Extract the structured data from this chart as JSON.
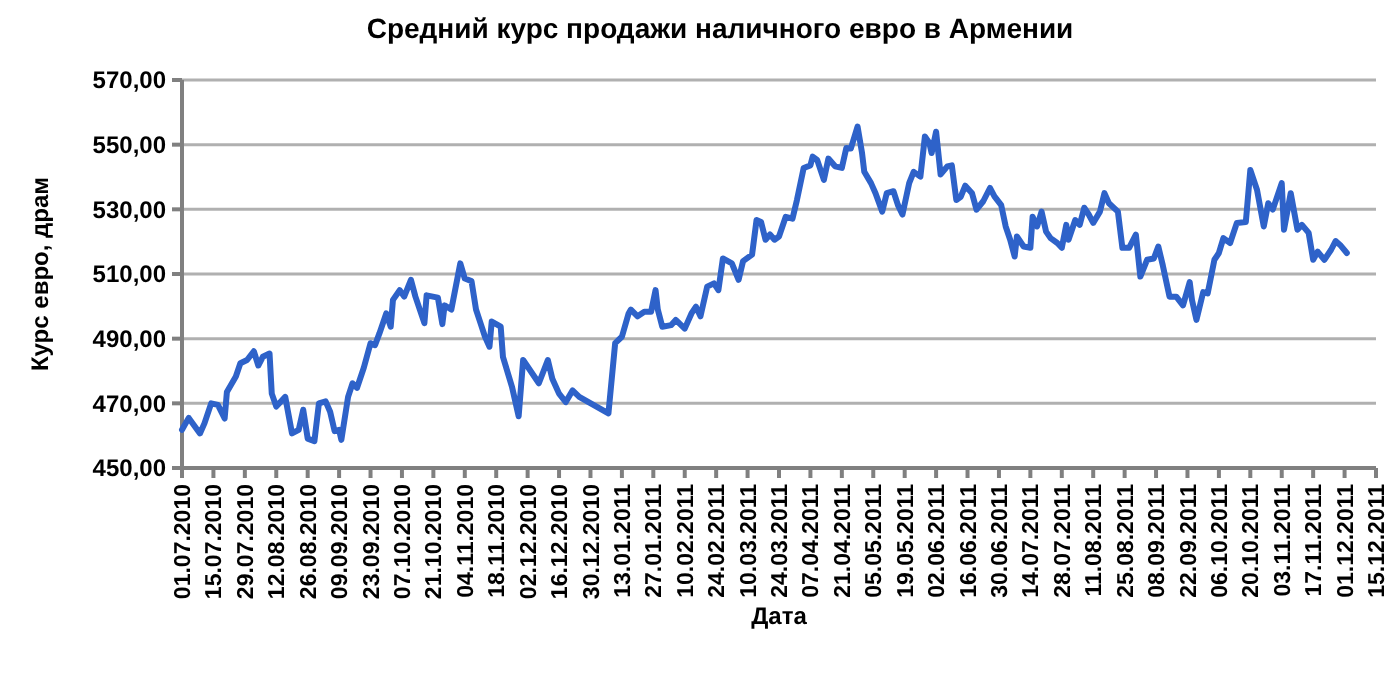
{
  "chart_data": {
    "type": "line",
    "title": "Средний курс продажи  наличного евро в Армении",
    "xlabel": "Дата",
    "ylabel": "Курс евро, драм",
    "xlim": [
      "2010-07-01",
      "2011-12-15"
    ],
    "xticks": [
      {
        "value": "2010-07-01",
        "label": "01.07.2010"
      },
      {
        "value": "2010-07-15",
        "label": "15.07.2010"
      },
      {
        "value": "2010-07-29",
        "label": "29.07.2010"
      },
      {
        "value": "2010-08-12",
        "label": "12.08.2010"
      },
      {
        "value": "2010-08-26",
        "label": "26.08.2010"
      },
      {
        "value": "2010-09-09",
        "label": "09.09.2010"
      },
      {
        "value": "2010-09-23",
        "label": "23.09.2010"
      },
      {
        "value": "2010-10-07",
        "label": "07.10.2010"
      },
      {
        "value": "2010-10-21",
        "label": "21.10.2010"
      },
      {
        "value": "2010-11-04",
        "label": "04.11.2010"
      },
      {
        "value": "2010-11-18",
        "label": "18.11.2010"
      },
      {
        "value": "2010-12-02",
        "label": "02.12.2010"
      },
      {
        "value": "2010-12-16",
        "label": "16.12.2010"
      },
      {
        "value": "2010-12-30",
        "label": "30.12.2010"
      },
      {
        "value": "2011-01-13",
        "label": "13.01.2011"
      },
      {
        "value": "2011-01-27",
        "label": "27.01.2011"
      },
      {
        "value": "2011-02-10",
        "label": "10.02.2011"
      },
      {
        "value": "2011-02-24",
        "label": "24.02.2011"
      },
      {
        "value": "2011-03-10",
        "label": "10.03.2011"
      },
      {
        "value": "2011-03-24",
        "label": "24.03.2011"
      },
      {
        "value": "2011-04-07",
        "label": "07.04.2011"
      },
      {
        "value": "2011-04-21",
        "label": "21.04.2011"
      },
      {
        "value": "2011-05-05",
        "label": "05.05.2011"
      },
      {
        "value": "2011-05-19",
        "label": "19.05.2011"
      },
      {
        "value": "2011-06-02",
        "label": "02.06.2011"
      },
      {
        "value": "2011-06-16",
        "label": "16.06.2011"
      },
      {
        "value": "2011-06-30",
        "label": "30.06.2011"
      },
      {
        "value": "2011-07-14",
        "label": "14.07.2011"
      },
      {
        "value": "2011-07-28",
        "label": "28.07.2011"
      },
      {
        "value": "2011-08-11",
        "label": "11.08.2011"
      },
      {
        "value": "2011-08-25",
        "label": "25.08.2011"
      },
      {
        "value": "2011-09-08",
        "label": "08.09.2011"
      },
      {
        "value": "2011-09-22",
        "label": "22.09.2011"
      },
      {
        "value": "2011-10-06",
        "label": "06.10.2011"
      },
      {
        "value": "2011-10-20",
        "label": "20.10.2011"
      },
      {
        "value": "2011-11-03",
        "label": "03.11.2011"
      },
      {
        "value": "2011-11-17",
        "label": "17.11.2011"
      },
      {
        "value": "2011-12-01",
        "label": "01.12.2011"
      },
      {
        "value": "2011-12-15",
        "label": "15.12.2011"
      }
    ],
    "ylim": [
      450,
      570
    ],
    "yticks": [
      {
        "value": 450,
        "label": "450,00"
      },
      {
        "value": 470,
        "label": "470,00"
      },
      {
        "value": 490,
        "label": "490,00"
      },
      {
        "value": 510,
        "label": "510,00"
      },
      {
        "value": 530,
        "label": "530,00"
      },
      {
        "value": 550,
        "label": "550,00"
      },
      {
        "value": 570,
        "label": "570,00"
      }
    ],
    "grid": "y",
    "marker": "none",
    "line_style": "solid",
    "x": [
      "2010-07-01",
      "2010-07-04",
      "2010-07-09",
      "2010-07-11",
      "2010-07-14",
      "2010-07-17",
      "2010-07-20",
      "2010-07-21",
      "2010-07-25",
      "2010-07-27",
      "2010-07-30",
      "2010-08-02",
      "2010-08-04",
      "2010-08-06",
      "2010-08-09",
      "2010-08-10",
      "2010-08-12",
      "2010-08-16",
      "2010-08-19",
      "2010-08-22",
      "2010-08-24",
      "2010-08-26",
      "2010-08-29",
      "2010-08-31",
      "2010-09-03",
      "2010-09-05",
      "2010-09-07",
      "2010-09-09",
      "2010-09-10",
      "2010-09-13",
      "2010-09-15",
      "2010-09-17",
      "2010-09-20",
      "2010-09-23",
      "2010-09-25",
      "2010-09-27",
      "2010-09-30",
      "2010-10-02",
      "2010-10-03",
      "2010-10-06",
      "2010-10-08",
      "2010-10-11",
      "2010-10-13",
      "2010-10-17",
      "2010-10-18",
      "2010-10-23",
      "2010-10-25",
      "2010-10-26",
      "2010-10-29",
      "2010-11-02",
      "2010-11-04",
      "2010-11-07",
      "2010-11-09",
      "2010-11-11",
      "2010-11-13",
      "2010-11-15",
      "2010-11-16",
      "2010-11-20",
      "2010-11-21",
      "2010-11-25",
      "2010-11-28",
      "2010-11-30",
      "2010-12-04",
      "2010-12-07",
      "2010-12-11",
      "2010-12-13",
      "2010-12-16",
      "2010-12-19",
      "2010-12-22",
      "2010-12-25",
      "2011-01-07",
      "2011-01-10",
      "2011-01-13",
      "2011-01-16",
      "2011-01-17",
      "2011-01-20",
      "2011-01-23",
      "2011-01-26",
      "2011-01-28",
      "2011-01-29",
      "2011-01-31",
      "2011-02-04",
      "2011-02-06",
      "2011-02-10",
      "2011-02-13",
      "2011-02-15",
      "2011-02-17",
      "2011-02-20",
      "2011-02-23",
      "2011-02-25",
      "2011-02-27",
      "2011-03-03",
      "2011-03-06",
      "2011-03-08",
      "2011-03-12",
      "2011-03-14",
      "2011-03-16",
      "2011-03-18",
      "2011-03-20",
      "2011-03-22",
      "2011-03-24",
      "2011-03-27",
      "2011-03-30",
      "2011-04-01",
      "2011-04-04",
      "2011-04-07",
      "2011-04-08",
      "2011-04-10",
      "2011-04-13",
      "2011-04-15",
      "2011-04-18",
      "2011-04-21",
      "2011-04-23",
      "2011-04-25",
      "2011-04-28",
      "2011-04-30",
      "2011-05-01",
      "2011-05-04",
      "2011-05-06",
      "2011-05-09",
      "2011-05-11",
      "2011-05-14",
      "2011-05-16",
      "2011-05-18",
      "2011-05-21",
      "2011-05-23",
      "2011-05-26",
      "2011-05-28",
      "2011-05-30",
      "2011-05-31",
      "2011-06-02",
      "2011-06-04",
      "2011-06-07",
      "2011-06-09",
      "2011-06-11",
      "2011-06-13",
      "2011-06-15",
      "2011-06-18",
      "2011-06-20",
      "2011-06-23",
      "2011-06-26",
      "2011-06-28",
      "2011-07-01",
      "2011-07-03",
      "2011-07-05",
      "2011-07-07",
      "2011-07-08",
      "2011-07-11",
      "2011-07-14",
      "2011-07-15",
      "2011-07-17",
      "2011-07-19",
      "2011-07-21",
      "2011-07-23",
      "2011-07-26",
      "2011-07-28",
      "2011-07-30",
      "2011-07-31",
      "2011-08-03",
      "2011-08-05",
      "2011-08-07",
      "2011-08-09",
      "2011-08-11",
      "2011-08-14",
      "2011-08-16",
      "2011-08-18",
      "2011-08-22",
      "2011-08-24",
      "2011-08-27",
      "2011-08-30",
      "2011-09-01",
      "2011-09-04",
      "2011-09-07",
      "2011-09-09",
      "2011-09-11",
      "2011-09-14",
      "2011-09-17",
      "2011-09-20",
      "2011-09-23",
      "2011-09-24",
      "2011-09-26",
      "2011-09-29",
      "2011-10-01",
      "2011-10-04",
      "2011-10-06",
      "2011-10-08",
      "2011-10-11",
      "2011-10-14",
      "2011-10-18",
      "2011-10-20",
      "2011-10-23",
      "2011-10-26",
      "2011-10-28",
      "2011-10-30",
      "2011-11-03",
      "2011-11-04",
      "2011-11-07",
      "2011-11-10",
      "2011-11-12",
      "2011-11-15",
      "2011-11-17",
      "2011-11-19",
      "2011-11-22",
      "2011-11-25",
      "2011-11-27",
      "2011-11-29",
      "2011-12-02"
    ],
    "series": [
      {
        "color": "#2e62c9",
        "values": [
          461.8,
          465.5,
          460.7,
          463.8,
          470,
          469.5,
          465.3,
          473.5,
          478.3,
          482.4,
          483.4,
          486.1,
          481.7,
          484.4,
          485.4,
          473,
          469,
          472,
          460.7,
          461.8,
          468,
          459.1,
          458.3,
          470,
          470.6,
          467.4,
          461.4,
          461.8,
          458.7,
          472,
          476.2,
          474.8,
          481,
          488.6,
          488,
          491.7,
          497.8,
          493.7,
          502,
          505,
          503,
          508.2,
          503,
          494.8,
          503.4,
          502.7,
          494.5,
          500.3,
          499,
          513.3,
          508.6,
          507.8,
          499,
          494.8,
          490.6,
          487.5,
          495.3,
          493.7,
          484.4,
          475.2,
          466,
          483.4,
          479.3,
          476.2,
          483.4,
          477.6,
          473,
          470.4,
          474,
          472,
          466.9,
          488.6,
          490.6,
          497.8,
          499,
          496.9,
          498.3,
          498.3,
          505,
          499,
          493.7,
          494.2,
          495.8,
          493.1,
          497.8,
          499.9,
          496.9,
          506.1,
          507.1,
          505,
          514.8,
          513.3,
          508.2,
          514,
          516,
          526.7,
          526.1,
          520.6,
          522.2,
          520.6,
          521.6,
          527.7,
          527.1,
          532.9,
          542.8,
          543.6,
          546.3,
          545.3,
          539.1,
          545.7,
          543.3,
          542.8,
          549,
          548.8,
          555.6,
          547.4,
          541.6,
          538.1,
          535,
          529.3,
          535,
          535.6,
          531.3,
          528.4,
          538.1,
          541.6,
          540.1,
          552.5,
          550.5,
          547.4,
          554,
          540.8,
          543.3,
          543.6,
          532.9,
          533.9,
          537.3,
          535,
          529.9,
          532.5,
          536.6,
          534,
          531.3,
          524.7,
          520.6,
          515.4,
          521.6,
          518.5,
          518.1,
          527.7,
          524.7,
          529.3,
          523.1,
          521.1,
          519.6,
          518.1,
          525.2,
          520.6,
          526.7,
          525.2,
          530.5,
          528.4,
          525.8,
          529.3,
          535,
          531.9,
          529.3,
          518.1,
          518.1,
          522.2,
          509.2,
          514.4,
          514.8,
          518.5,
          512.7,
          503,
          503,
          500.3,
          507.5,
          502,
          495.8,
          504.4,
          504,
          514.4,
          516.5,
          521.1,
          519.6,
          525.8,
          526.1,
          542.2,
          536,
          524.7,
          531.9,
          529.9,
          538.1,
          523.7,
          535,
          523.7,
          525.2,
          522.7,
          514.4,
          516.9,
          514.4,
          517.5,
          520.2,
          519,
          516.5
        ]
      }
    ]
  }
}
